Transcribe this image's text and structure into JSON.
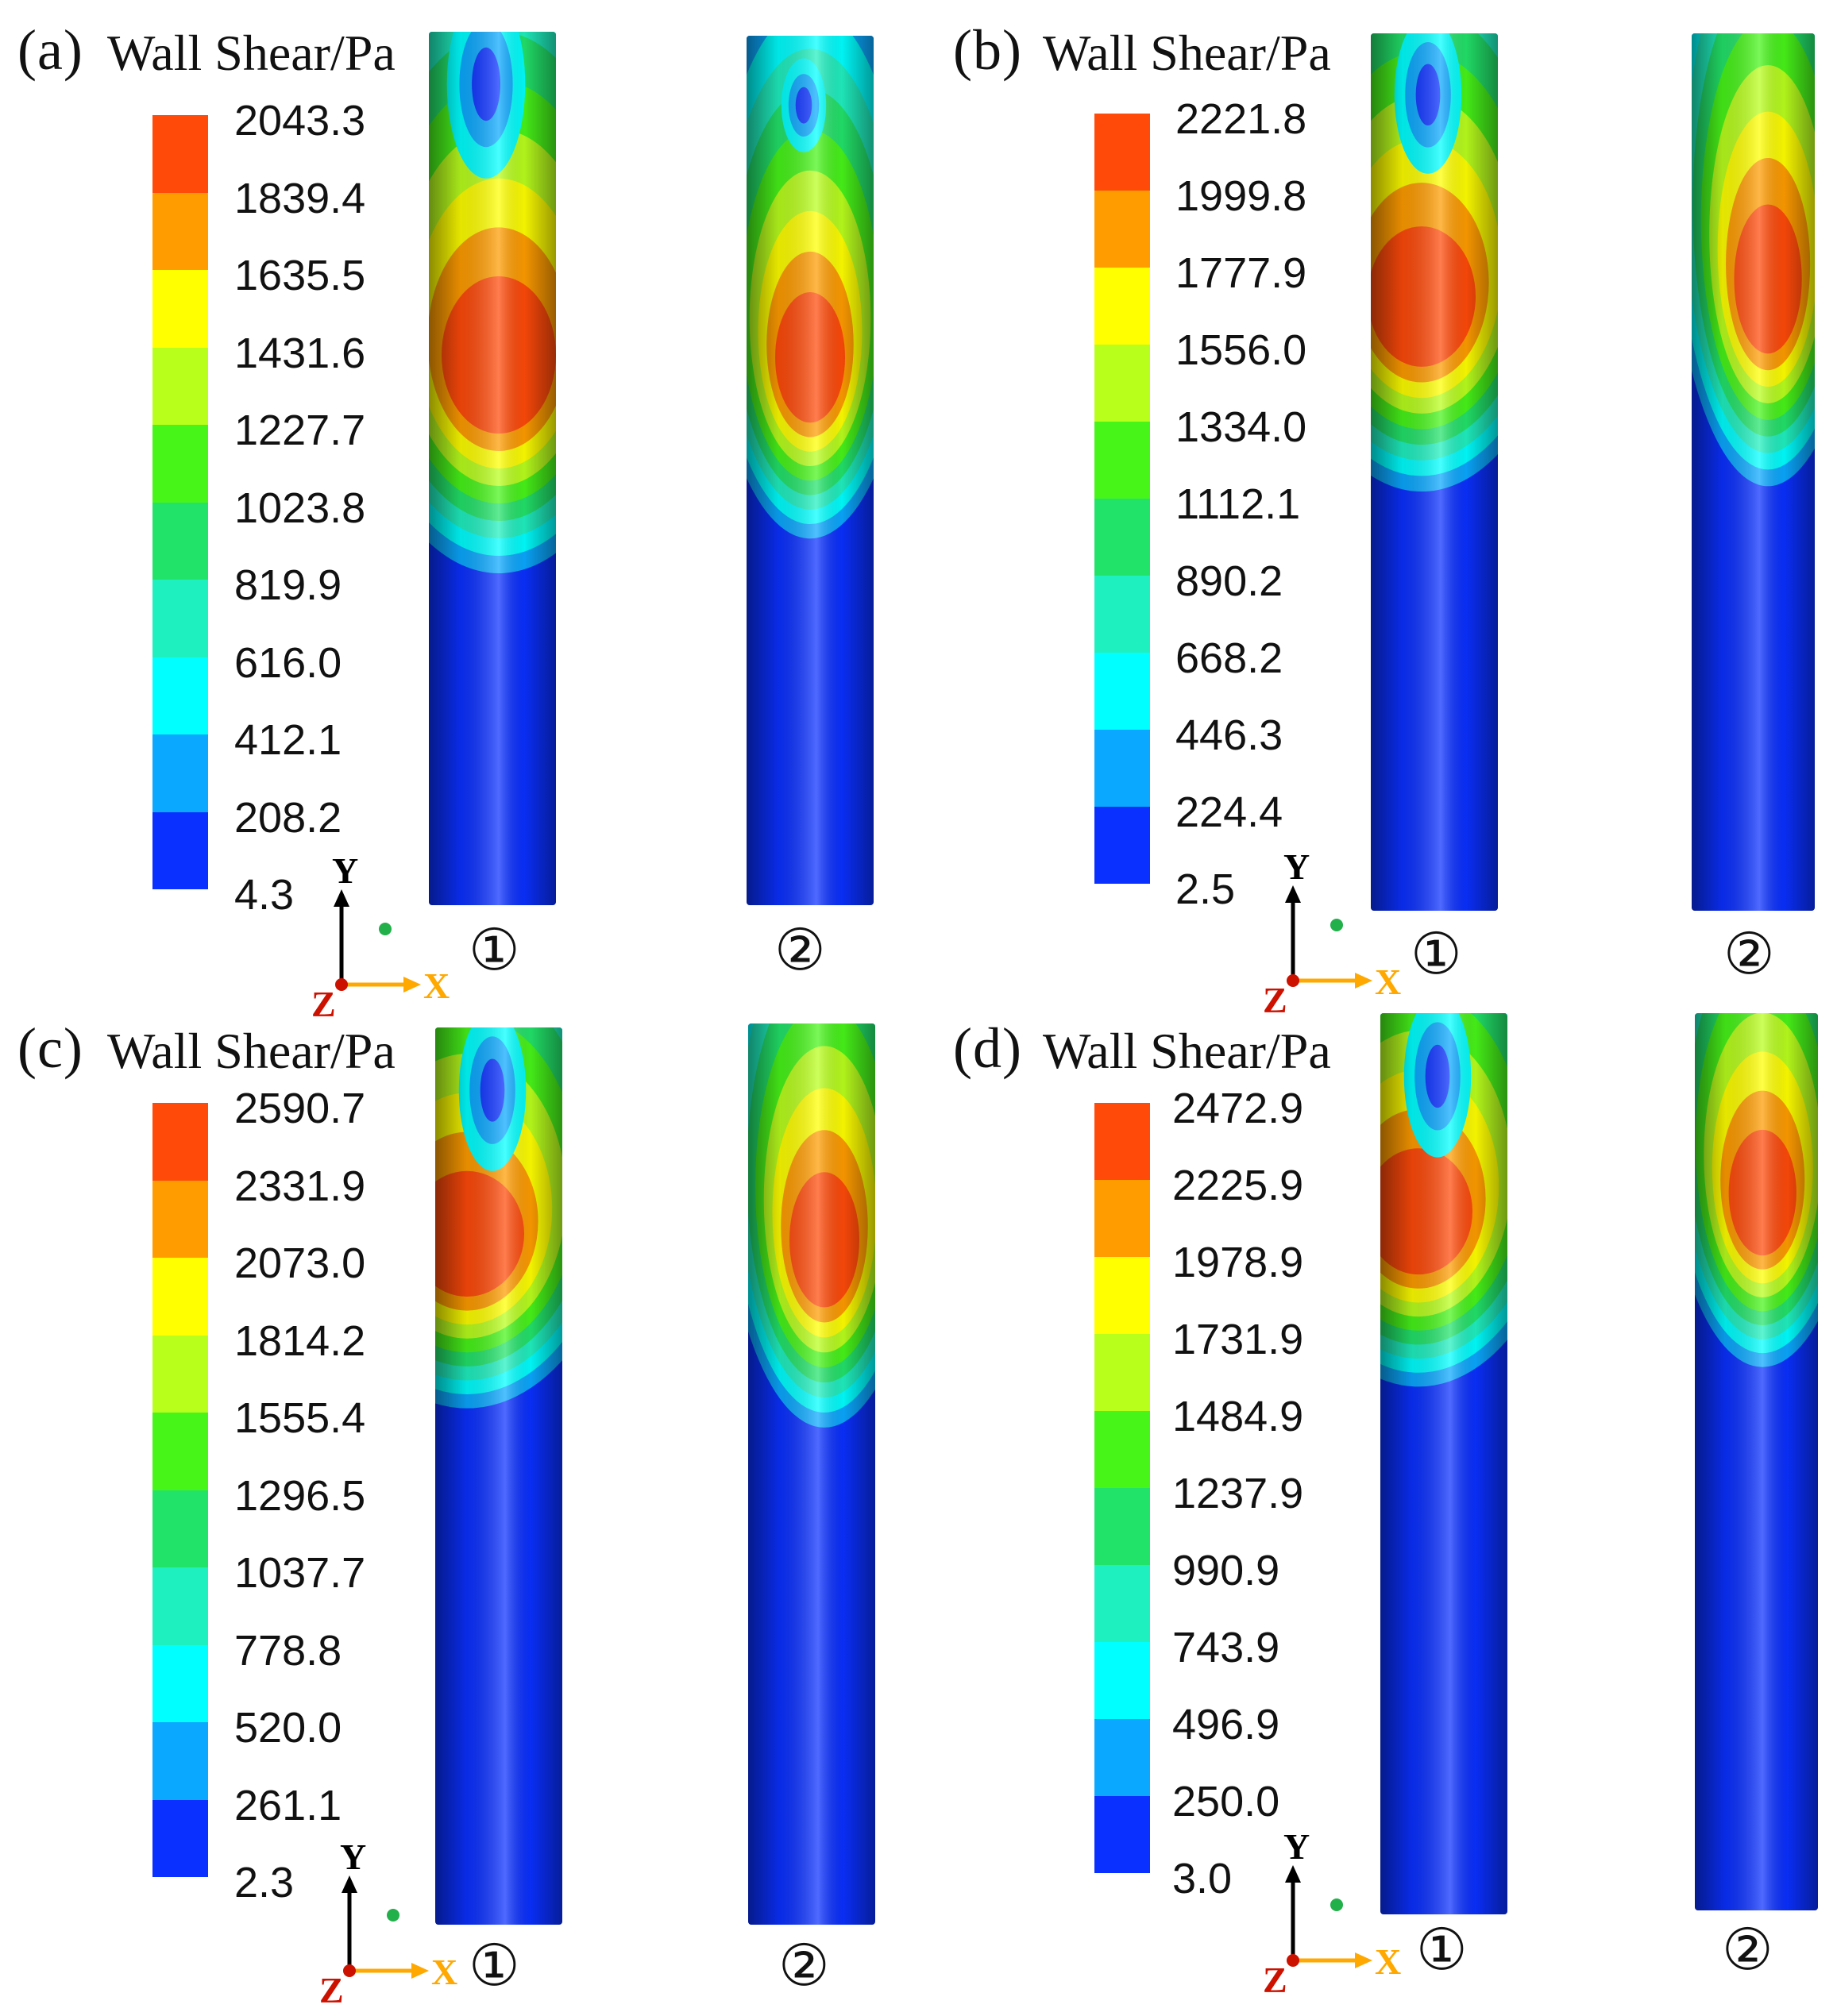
{
  "panels": [
    {
      "label": "(a)",
      "title": "Wall Shear/Pa",
      "ticks": [
        "2043.3",
        "1839.4",
        "1635.5",
        "1431.6",
        "1227.7",
        "1023.8",
        "819.9",
        "616.0",
        "412.1",
        "208.2",
        "4.3"
      ],
      "tube_labels": [
        "①",
        "②"
      ]
    },
    {
      "label": "(b)",
      "title": "Wall Shear/Pa",
      "ticks": [
        "2221.8",
        "1999.8",
        "1777.9",
        "1556.0",
        "1334.0",
        "1112.1",
        "890.2",
        "668.2",
        "446.3",
        "224.4",
        "2.5"
      ],
      "tube_labels": [
        "①",
        "②"
      ]
    },
    {
      "label": "(c)",
      "title": "Wall Shear/Pa",
      "ticks": [
        "2590.7",
        "2331.9",
        "2073.0",
        "1814.2",
        "1555.4",
        "1296.5",
        "1037.7",
        "778.8",
        "520.0",
        "261.1",
        "2.3"
      ],
      "tube_labels": [
        "①",
        "②"
      ]
    },
    {
      "label": "(d)",
      "title": "Wall Shear/Pa",
      "ticks": [
        "2472.9",
        "2225.9",
        "1978.9",
        "1731.9",
        "1484.9",
        "1237.9",
        "990.9",
        "743.9",
        "496.9",
        "250.0",
        "3.0"
      ],
      "tube_labels": [
        "①",
        "②"
      ]
    }
  ],
  "axis_triad": {
    "y": "Y",
    "x": "X",
    "z": "Z"
  },
  "colormap": [
    "#ff4a0a",
    "#ff9c00",
    "#ffff00",
    "#b9ff1c",
    "#47f519",
    "#22e36a",
    "#1ff0c0",
    "#00ffff",
    "#0aa8ff",
    "#0a30ff"
  ],
  "colors": {
    "axis_y": "#000000",
    "axis_x": "#ffa800",
    "axis_z": "#cc1100",
    "triad_dot": "#22b04a"
  }
}
